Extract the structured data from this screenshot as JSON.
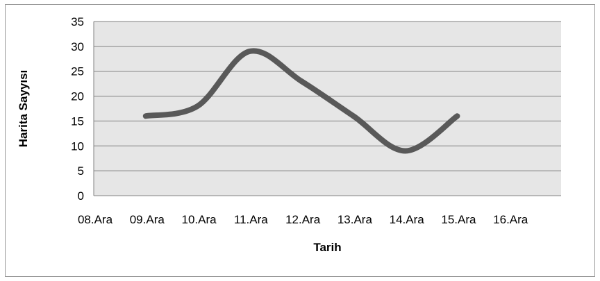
{
  "chart_data": {
    "type": "line",
    "categories": [
      "08.Ara",
      "09.Ara",
      "10.Ara",
      "11.Ara",
      "12.Ara",
      "13.Ara",
      "14.Ara",
      "15.Ara",
      "16.Ara"
    ],
    "series": [
      {
        "values": [
          null,
          16,
          18,
          29,
          23,
          16,
          9,
          16,
          null
        ],
        "color": "#595959"
      }
    ],
    "xlabel": "Tarih",
    "ylabel": "Harita Sayyısı",
    "ylim": [
      0,
      35
    ],
    "yticks": [
      0,
      5,
      10,
      15,
      20,
      25,
      30,
      35
    ],
    "grid": true,
    "smooth": true,
    "plot_background": "#e6e6e6",
    "gridline_color": "#808080"
  }
}
